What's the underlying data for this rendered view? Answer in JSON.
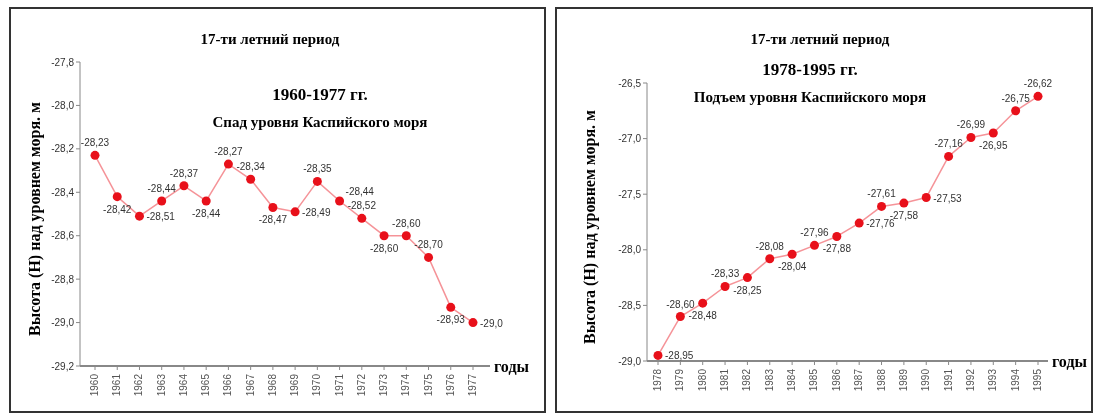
{
  "chart_data": [
    {
      "type": "line",
      "title": "17-ти летний период",
      "subtitle": "1960-1977 гг.\nСпад уровня Каспийского моря",
      "xlabel": "годы",
      "ylabel": "Высота (Н) над уровнем моря. м",
      "categories": [
        "1960",
        "1961",
        "1962",
        "1963",
        "1964",
        "1965",
        "1966",
        "1967",
        "1968",
        "1969",
        "1970",
        "1971",
        "1972",
        "1973",
        "1974",
        "1975",
        "1976",
        "1977"
      ],
      "series": [
        {
          "color": "#e8101a",
          "values": [
            -28.23,
            -28.42,
            -28.51,
            -28.44,
            -28.37,
            -28.44,
            -28.27,
            -28.34,
            -28.47,
            -28.49,
            -28.35,
            -28.44,
            -28.52,
            -28.6,
            -28.6,
            -28.7,
            -28.93,
            -29.0
          ],
          "value_labels": [
            "-28,23",
            "-28,42",
            "-28,51",
            "-28,44",
            "-28,37",
            "-28,44",
            "-28,27",
            "-28,34",
            "-28,47",
            "-28,49",
            "-28,35",
            "-28,44",
            "-28,52",
            "-28,60",
            "-28,60",
            "-28,70",
            "-28,93",
            "-29,0"
          ]
        }
      ],
      "marker": "circle",
      "ylim": [
        -29.2,
        -27.8
      ],
      "yticks": [
        {
          "value": -29.2,
          "label": "-29,2"
        },
        {
          "value": -29.0,
          "label": "-29,0"
        },
        {
          "value": -28.8,
          "label": "-28,8"
        },
        {
          "value": -28.6,
          "label": "-28,6"
        },
        {
          "value": -28.4,
          "label": "-28,4"
        },
        {
          "value": -28.2,
          "label": "-28,2"
        },
        {
          "value": -28.0,
          "label": "-28,0"
        },
        {
          "value": -27.8,
          "label": "-27,8"
        }
      ],
      "grid": false
    },
    {
      "type": "line",
      "title": "17-ти летний период",
      "subtitle": "1978-1995 гг.\nПодъем уровня Каспийского моря",
      "xlabel": "годы",
      "ylabel": "Высота (Н) над уровнем моря. м",
      "categories": [
        "1978",
        "1979",
        "1980",
        "1981",
        "1982",
        "1983",
        "1984",
        "1985",
        "1986",
        "1987",
        "1988",
        "1989",
        "1990",
        "1991",
        "1992",
        "1993",
        "1994",
        "1995"
      ],
      "series": [
        {
          "color": "#e8101a",
          "values": [
            -28.95,
            -28.6,
            -28.48,
            -28.33,
            -28.25,
            -28.08,
            -28.04,
            -27.96,
            -27.88,
            -27.76,
            -27.61,
            -27.58,
            -27.53,
            -27.16,
            -26.99,
            -26.95,
            -26.75,
            -26.62
          ],
          "value_labels": [
            "-28,95",
            "-28,60",
            "-28,48",
            "-28,33",
            "-28,25",
            "-28,08",
            "-28,04",
            "-27,96",
            "-27,88",
            "-27,76",
            "-27,61",
            "-27,58",
            "-27,53",
            "-27,16",
            "-26,99",
            "-26,95",
            "-26,75",
            "-26,62"
          ]
        }
      ],
      "marker": "circle",
      "ylim": [
        -29.0,
        -26.5
      ],
      "yticks": [
        {
          "value": -29.0,
          "label": "-29,0"
        },
        {
          "value": -28.5,
          "label": "-28,5"
        },
        {
          "value": -28.0,
          "label": "-28,0"
        },
        {
          "value": -27.5,
          "label": "-27,5"
        },
        {
          "value": -27.0,
          "label": "-27,0"
        },
        {
          "value": -26.5,
          "label": "-26,5"
        }
      ],
      "grid": false
    }
  ]
}
